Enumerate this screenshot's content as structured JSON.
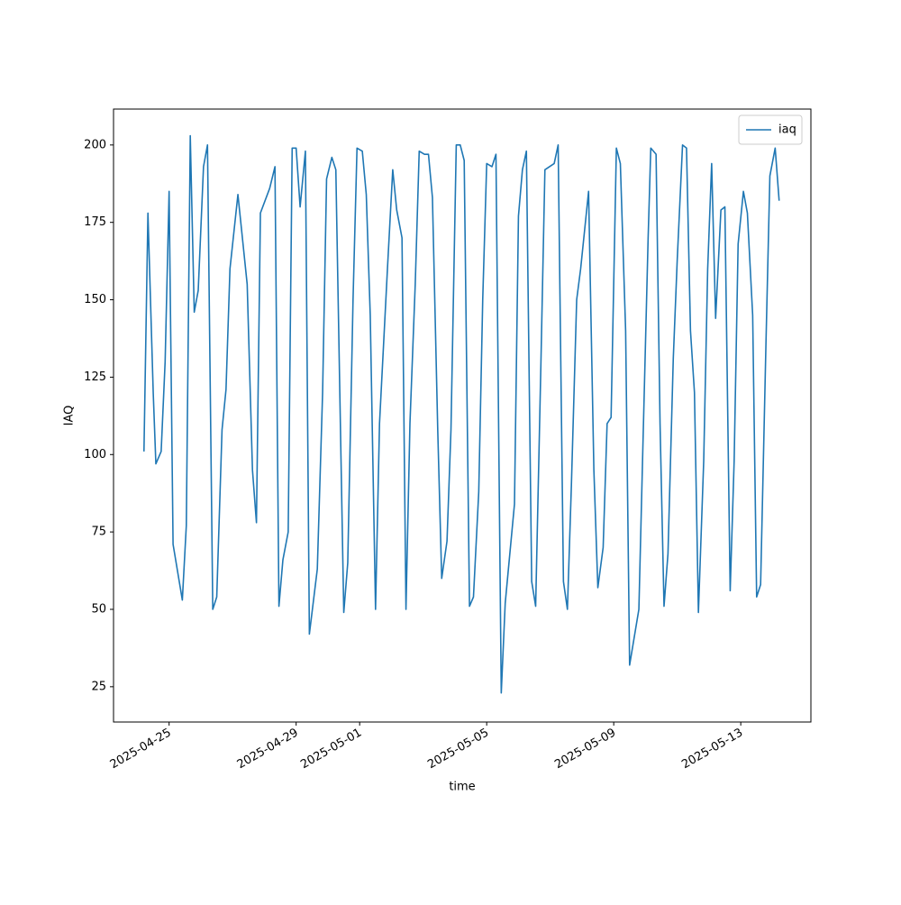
{
  "chart_data": {
    "type": "line",
    "xlabel": "time",
    "ylabel": "IAQ",
    "legend": "upper right",
    "grid": false,
    "x": [
      "2025-04-24 05:00",
      "2025-04-24 08:00",
      "2025-04-24 12:00",
      "2025-04-24 14:00",
      "2025-04-24 18:00",
      "2025-04-24 21:00",
      "2025-04-25 00:00",
      "2025-04-25 03:00",
      "2025-04-25 10:00",
      "2025-04-25 13:00",
      "2025-04-25 16:00",
      "2025-04-25 19:00",
      "2025-04-25 22:00",
      "2025-04-26 02:00",
      "2025-04-26 05:00",
      "2025-04-26 09:00",
      "2025-04-26 12:00",
      "2025-04-26 16:00",
      "2025-04-26 19:00",
      "2025-04-26 22:00",
      "2025-04-27 04:00",
      "2025-04-27 11:00",
      "2025-04-27 15:00",
      "2025-04-27 18:00",
      "2025-04-27 21:00",
      "2025-04-28 04:00",
      "2025-04-28 08:00",
      "2025-04-28 11:00",
      "2025-04-28 14:00",
      "2025-04-28 18:00",
      "2025-04-28 21:00",
      "2025-04-29 00:00",
      "2025-04-29 03:00",
      "2025-04-29 07:00",
      "2025-04-29 10:00",
      "2025-04-29 16:00",
      "2025-04-29 20:00",
      "2025-04-29 23:00",
      "2025-04-30 03:00",
      "2025-04-30 06:00",
      "2025-04-30 09:00",
      "2025-04-30 12:00",
      "2025-04-30 15:00",
      "2025-04-30 19:00",
      "2025-04-30 22:00",
      "2025-05-01 02:00",
      "2025-05-01 05:00",
      "2025-05-01 08:00",
      "2025-05-01 12:00",
      "2025-05-01 15:00",
      "2025-05-01 21:00",
      "2025-05-02 01:00",
      "2025-05-02 04:00",
      "2025-05-02 08:00",
      "2025-05-02 11:00",
      "2025-05-02 14:00",
      "2025-05-02 18:00",
      "2025-05-02 21:00",
      "2025-05-03 01:00",
      "2025-05-03 04:00",
      "2025-05-03 07:00",
      "2025-05-03 11:00",
      "2025-05-03 14:00",
      "2025-05-03 18:00",
      "2025-05-03 21:00",
      "2025-05-04 01:00",
      "2025-05-04 04:00",
      "2025-05-04 07:00",
      "2025-05-04 11:00",
      "2025-05-04 14:00",
      "2025-05-04 18:00",
      "2025-05-04 21:00",
      "2025-05-05 00:00",
      "2025-05-05 04:00",
      "2025-05-05 07:00",
      "2025-05-05 11:00",
      "2025-05-05 14:00",
      "2025-05-05 21:00",
      "2025-05-06 00:00",
      "2025-05-06 03:00",
      "2025-05-06 06:00",
      "2025-05-06 10:00",
      "2025-05-06 13:00",
      "2025-05-06 17:00",
      "2025-05-06 20:00",
      "2025-05-07 03:00",
      "2025-05-07 06:00",
      "2025-05-07 10:00",
      "2025-05-07 13:00",
      "2025-05-07 16:00",
      "2025-05-07 20:00",
      "2025-05-07 23:00",
      "2025-05-08 05:00",
      "2025-05-08 09:00",
      "2025-05-08 12:00",
      "2025-05-08 16:00",
      "2025-05-08 19:00",
      "2025-05-08 22:00",
      "2025-05-09 02:00",
      "2025-05-09 05:00",
      "2025-05-09 09:00",
      "2025-05-09 12:00",
      "2025-05-09 19:00",
      "2025-05-09 22:00",
      "2025-05-10 02:00",
      "2025-05-10 04:00",
      "2025-05-10 08:00",
      "2025-05-10 11:00",
      "2025-05-10 14:00",
      "2025-05-10 17:00",
      "2025-05-10 21:00",
      "2025-05-11 00:00",
      "2025-05-11 04:00",
      "2025-05-11 07:00",
      "2025-05-11 10:00",
      "2025-05-11 13:00",
      "2025-05-11 16:00",
      "2025-05-11 20:00",
      "2025-05-11 23:00",
      "2025-05-12 02:00",
      "2025-05-12 05:00",
      "2025-05-12 09:00",
      "2025-05-12 12:00",
      "2025-05-12 16:00",
      "2025-05-12 19:00",
      "2025-05-12 22:00",
      "2025-05-13 02:00",
      "2025-05-13 05:00",
      "2025-05-13 09:00",
      "2025-05-13 12:00",
      "2025-05-13 15:00",
      "2025-05-13 19:00",
      "2025-05-13 22:00",
      "2025-05-14 02:00",
      "2025-05-14 05:00"
    ],
    "series": [
      {
        "name": "iaq",
        "color": "#1f77b4",
        "values": [
          101,
          178,
          120,
          97,
          101,
          130,
          185,
          71,
          53,
          77,
          203,
          146,
          153,
          193,
          200,
          50,
          54,
          108,
          121,
          160,
          184,
          155,
          95,
          78,
          178,
          186,
          193,
          51,
          66,
          75,
          199,
          199,
          180,
          198,
          42,
          63,
          120,
          189,
          196,
          192,
          120,
          49,
          65,
          150,
          199,
          198,
          184,
          145,
          50,
          110,
          160,
          192,
          179,
          170,
          50,
          110,
          155,
          198,
          197,
          197,
          183,
          108,
          60,
          72,
          108,
          200,
          200,
          195,
          51,
          54,
          88,
          150,
          194,
          193,
          197,
          23,
          52,
          84,
          177,
          192,
          198,
          59,
          51,
          130,
          192,
          194,
          200,
          59,
          50,
          90,
          150,
          160,
          185,
          95,
          57,
          70,
          110,
          112,
          199,
          194,
          140,
          32,
          50,
          102,
          170,
          199,
          197,
          110,
          51,
          68,
          131,
          163,
          200,
          199,
          140,
          120,
          49,
          98,
          160,
          194,
          144,
          179,
          180,
          56,
          98,
          168,
          185,
          178,
          145,
          54,
          58,
          135,
          190,
          199,
          182
        ]
      }
    ],
    "xlim": [
      "2025-04-23 06:00",
      "2025-05-15 05:00"
    ],
    "xticks": [
      "2025-04-25",
      "2025-04-29",
      "2025-05-01",
      "2025-05-05",
      "2025-05-09",
      "2025-05-13"
    ],
    "ylim": [
      13.6,
      211.6
    ],
    "yticks": [
      25,
      50,
      75,
      100,
      125,
      150,
      175,
      200
    ]
  }
}
